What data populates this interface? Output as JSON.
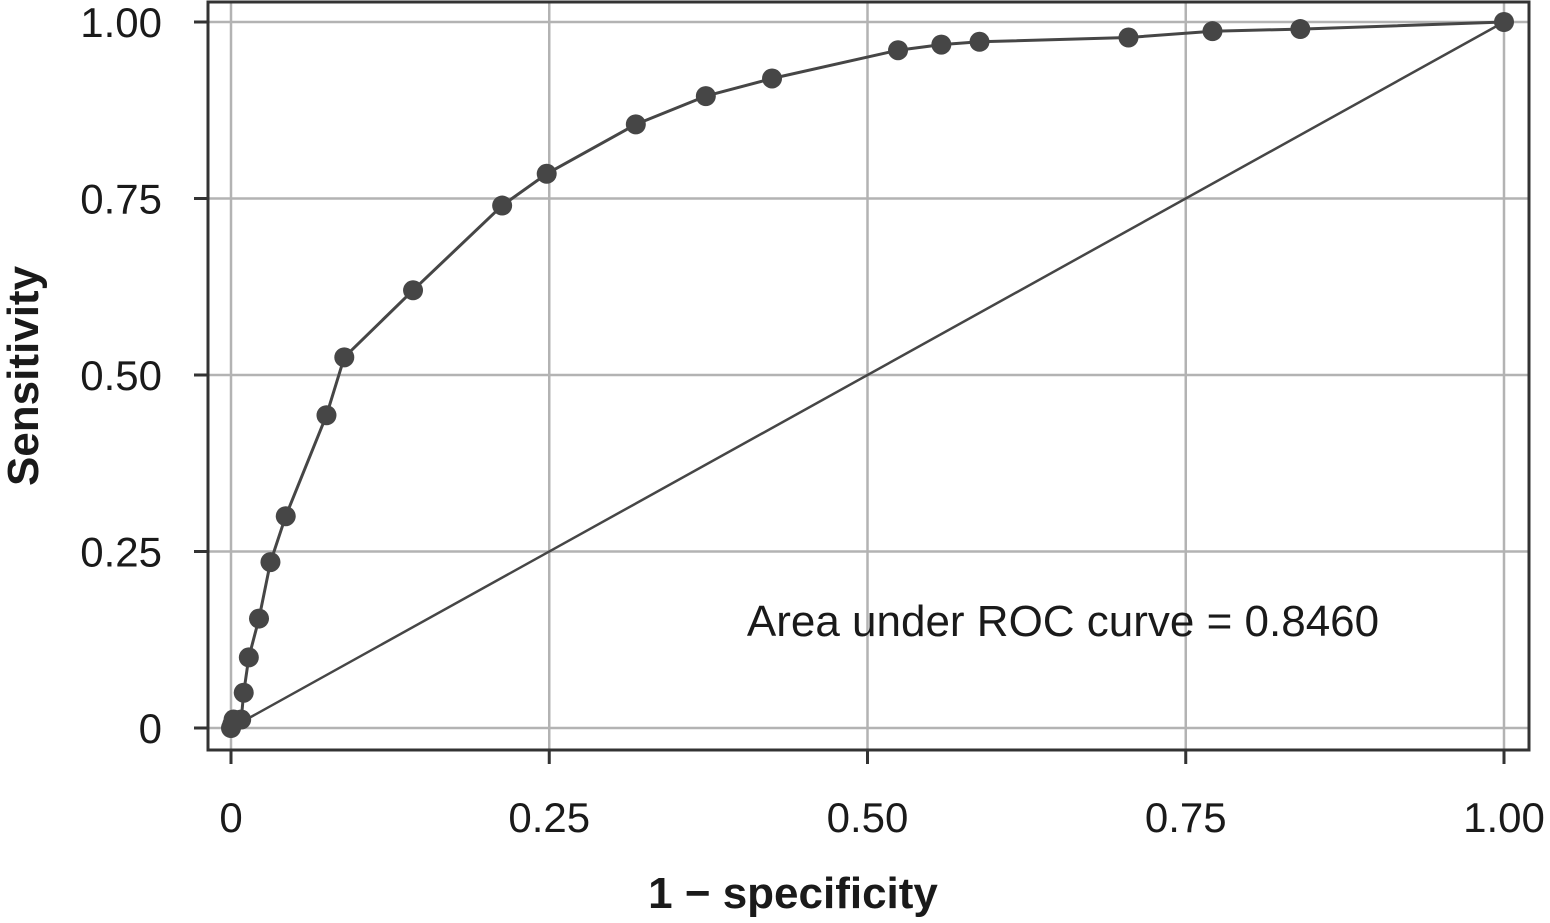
{
  "chart_data": {
    "type": "line",
    "title": "",
    "xlabel": "1 − specificity",
    "ylabel": "Sensitivity",
    "xlim": [
      0,
      1
    ],
    "ylim": [
      0,
      1
    ],
    "x_ticks": [
      {
        "value": 0,
        "label": "0"
      },
      {
        "value": 0.25,
        "label": "0.25"
      },
      {
        "value": 0.5,
        "label": "0.50"
      },
      {
        "value": 0.75,
        "label": "0.75"
      },
      {
        "value": 1,
        "label": "1.00"
      }
    ],
    "y_ticks": [
      {
        "value": 0,
        "label": "0"
      },
      {
        "value": 0.25,
        "label": "0.25"
      },
      {
        "value": 0.5,
        "label": "0.50"
      },
      {
        "value": 0.75,
        "label": "0.75"
      },
      {
        "value": 1,
        "label": "1.00"
      }
    ],
    "grid": true,
    "annotation": "Area under ROC curve = 0.8460",
    "series": [
      {
        "values": [
          {
            "x": 0.0,
            "y": 0.0
          },
          {
            "x": 0.001,
            "y": 0.005
          },
          {
            "x": 0.002,
            "y": 0.012
          },
          {
            "x": 0.008,
            "y": 0.012
          },
          {
            "x": 0.01,
            "y": 0.05
          },
          {
            "x": 0.014,
            "y": 0.1
          },
          {
            "x": 0.022,
            "y": 0.155
          },
          {
            "x": 0.031,
            "y": 0.235
          },
          {
            "x": 0.043,
            "y": 0.3
          },
          {
            "x": 0.075,
            "y": 0.443
          },
          {
            "x": 0.089,
            "y": 0.525
          },
          {
            "x": 0.143,
            "y": 0.62
          },
          {
            "x": 0.213,
            "y": 0.74
          },
          {
            "x": 0.248,
            "y": 0.785
          },
          {
            "x": 0.318,
            "y": 0.855
          },
          {
            "x": 0.373,
            "y": 0.895
          },
          {
            "x": 0.425,
            "y": 0.92
          },
          {
            "x": 0.524,
            "y": 0.96
          },
          {
            "x": 0.558,
            "y": 0.968
          },
          {
            "x": 0.588,
            "y": 0.972
          },
          {
            "x": 0.705,
            "y": 0.978
          },
          {
            "x": 0.771,
            "y": 0.987
          },
          {
            "x": 0.84,
            "y": 0.99
          },
          {
            "x": 1.0,
            "y": 1.0
          }
        ]
      },
      {
        "type": "reference-line",
        "values": [
          {
            "x": 0.0,
            "y": 0.0
          },
          {
            "x": 1.0,
            "y": 1.0
          }
        ]
      }
    ],
    "colors": {
      "curve": "#464646",
      "markers": "#464646",
      "reference": "#464646",
      "grid": "#b3b3b3",
      "frame": "#333333"
    }
  }
}
